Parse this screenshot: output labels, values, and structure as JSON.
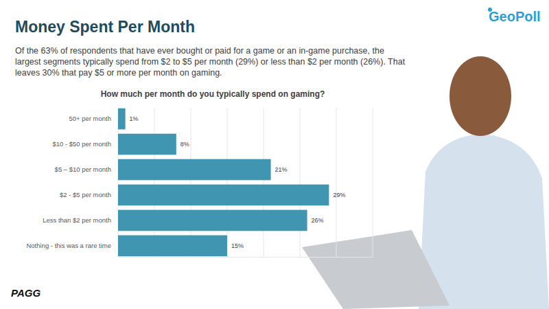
{
  "chart_data": {
    "type": "bar",
    "orientation": "horizontal",
    "title": "Money Spent Per Month",
    "subtitle": "Of the 63% of respondents that have ever bought or paid for a game or an in-game purchase, the largest segments typically spend from $2 to $5 per month (29%) or less than $2 per month (26%). That leaves 30% that pay $5 or more per month on gaming.",
    "chart_title": "How much per month do you typically spend on gaming?",
    "categories": [
      "50+ per month",
      "$10 - $50 per month",
      "$5 – $10 per month",
      "$2 - $5 per month",
      "Less than $2 per month",
      "Nothing - this was a rare time"
    ],
    "values": [
      1,
      8,
      21,
      29,
      26,
      15
    ],
    "value_labels": [
      "1%",
      "8%",
      "21%",
      "29%",
      "26%",
      "15%"
    ],
    "color": "#4096b0",
    "xlim": [
      0,
      35
    ],
    "xticks": [
      0,
      5,
      10,
      15,
      20,
      25,
      30,
      35
    ],
    "grid": true,
    "data_labels": true,
    "tick_labels": "y",
    "annotations": [
      "GeoPoll",
      "PAGG"
    ]
  }
}
